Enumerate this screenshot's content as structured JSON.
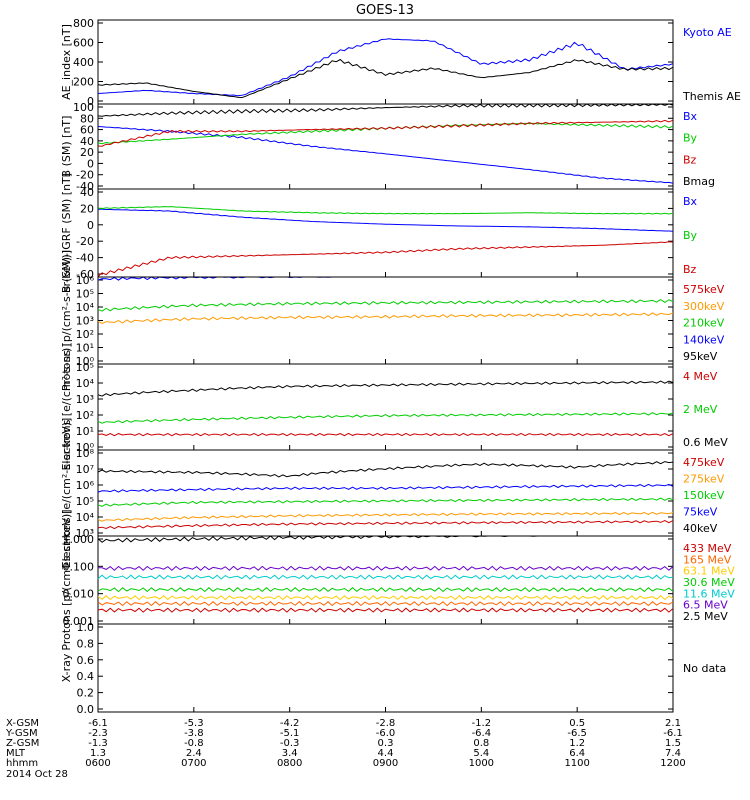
{
  "title": "GOES-13",
  "footer": {
    "rows": [
      {
        "label": "X-GSM",
        "values": [
          "-6.1",
          "-5.3",
          "-4.2",
          "-2.8",
          "-1.2",
          "0.5",
          "2.1"
        ]
      },
      {
        "label": "Y-GSM",
        "values": [
          "-2.3",
          "-3.8",
          "-5.1",
          "-6.0",
          "-6.4",
          "-6.5",
          "-6.1"
        ]
      },
      {
        "label": "Z-GSM",
        "values": [
          "-1.3",
          "-0.8",
          "-0.3",
          "0.3",
          "0.8",
          "1.2",
          "1.5"
        ]
      },
      {
        "label": "MLT",
        "values": [
          "1.3",
          "2.4",
          "3.4",
          "4.4",
          "5.4",
          "6.4",
          "7.4"
        ]
      },
      {
        "label": "hhmm",
        "values": [
          "0600",
          "0700",
          "0800",
          "0900",
          "1000",
          "1100",
          "1200"
        ]
      }
    ],
    "date": "2014 Oct 28"
  },
  "chart_data": [
    {
      "type": "line",
      "ylabel": "AE_index [nT]",
      "ylim": [
        0,
        800
      ],
      "yticks": [
        "800",
        "600",
        "400",
        "200",
        "0"
      ],
      "series": [
        {
          "name": "Kyoto AE",
          "color": "#0000ff",
          "x": [
            "0600",
            "0630",
            "0700",
            "0730",
            "0800",
            "0830",
            "0900",
            "0930",
            "1000",
            "1030",
            "1100",
            "1130",
            "1200"
          ],
          "values": [
            100,
            130,
            100,
            80,
            260,
            500,
            620,
            600,
            380,
            420,
            580,
            330,
            380
          ]
        },
        {
          "name": "Themis AE",
          "color": "#000000",
          "x": [
            "0600",
            "0630",
            "0700",
            "0730",
            "0800",
            "0830",
            "0900",
            "0930",
            "1000",
            "1030",
            "1100",
            "1130",
            "1200"
          ],
          "values": [
            180,
            200,
            120,
            60,
            240,
            420,
            280,
            340,
            250,
            300,
            420,
            330,
            340
          ]
        }
      ]
    },
    {
      "type": "line",
      "ylabel": "B (SM) [nT]",
      "ylim": [
        -40,
        100
      ],
      "yticks": [
        "100",
        "80",
        "60",
        "40",
        "20",
        "0",
        "-20",
        "-40"
      ],
      "series": [
        {
          "name": "Bx",
          "color": "#0000ff",
          "values": [
            63,
            55,
            45,
            30,
            18,
            5,
            -8,
            -22,
            -30
          ]
        },
        {
          "name": "By",
          "color": "#00cc00",
          "values": [
            35,
            42,
            50,
            55,
            60,
            65,
            68,
            65,
            62
          ]
        },
        {
          "name": "Bz",
          "color": "#cc0000",
          "values": [
            30,
            55,
            55,
            58,
            60,
            64,
            68,
            70,
            72
          ]
        },
        {
          "name": "Bmag",
          "color": "#000000",
          "values": [
            80,
            85,
            88,
            90,
            94,
            97,
            98,
            99,
            99
          ]
        }
      ]
    },
    {
      "type": "line",
      "ylabel": "B (SM)-IGRF (SM) [nT]",
      "ylim": [
        -60,
        40
      ],
      "yticks": [
        "40",
        "20",
        "0",
        "-20",
        "-40",
        "-60"
      ],
      "series": [
        {
          "name": "Bx",
          "color": "#0000ff",
          "values": [
            17,
            15,
            8,
            3,
            0,
            -2,
            -3,
            -5,
            -8
          ]
        },
        {
          "name": "By",
          "color": "#00cc00",
          "values": [
            18,
            20,
            15,
            13,
            12,
            12,
            13,
            12,
            12
          ]
        },
        {
          "name": "Bz",
          "color": "#cc0000",
          "values": [
            -58,
            -38,
            -36,
            -34,
            -32,
            -28,
            -26,
            -24,
            -20
          ]
        }
      ]
    },
    {
      "type": "line",
      "scale": "log",
      "ylabel": "Protons [p/(cm²-s-sr-keV)]",
      "ylim": [
        1,
        10000
      ],
      "yticks": [
        "10⁶",
        "10⁵",
        "10⁴",
        "10³",
        "10²",
        "10¹",
        "10⁰"
      ],
      "series": [
        {
          "name": "575keV",
          "color": "#cc0000",
          "values": [
            40000,
            40000,
            42000,
            45000,
            48000,
            50000,
            52000
          ]
        },
        {
          "name": "300keV",
          "color": "#ff9900",
          "values": [
            80,
            120,
            140,
            150,
            170,
            180,
            200
          ]
        },
        {
          "name": "210keV",
          "color": "#00cc00",
          "values": [
            300,
            500,
            600,
            650,
            700,
            750,
            800
          ]
        },
        {
          "name": "140keV",
          "color": "#0000ff",
          "values": [
            8000,
            10000,
            11000,
            12000,
            13000,
            14000,
            15000
          ]
        },
        {
          "name": "95keV",
          "color": "#000000",
          "values": [
            40000,
            40000,
            42000,
            45000,
            48000,
            50000,
            52000
          ]
        }
      ]
    },
    {
      "type": "line",
      "scale": "log",
      "ylabel": "Electrons [e/(cm²-s-sr)]",
      "ylim": [
        1,
        100000
      ],
      "yticks": [
        "10⁵",
        "10⁴",
        "10³",
        "10²",
        "10¹",
        "10⁰"
      ],
      "series": [
        {
          "name": "4 MeV",
          "color": "#cc0000",
          "values": [
            8,
            8,
            8,
            8,
            8,
            8,
            8
          ]
        },
        {
          "name": "2 MeV",
          "color": "#00cc00",
          "values": [
            40,
            60,
            80,
            100,
            110,
            120,
            130
          ]
        },
        {
          "name": "0.6 MeV",
          "color": "#000000",
          "values": [
            1500,
            3000,
            5000,
            6000,
            7000,
            8000,
            9000
          ]
        }
      ]
    },
    {
      "type": "line",
      "scale": "log",
      "ylabel": "Electrons [e/(cm²-s-sr-keV)]",
      "ylim": [
        1000,
        100000000
      ],
      "yticks": [
        "10⁸",
        "10⁷",
        "10⁶",
        "10⁵",
        "10⁴",
        "10³"
      ],
      "series": [
        {
          "name": "475keV",
          "color": "#cc0000",
          "values": [
            3000,
            4000,
            5000,
            5500,
            6000,
            6500,
            7000
          ]
        },
        {
          "name": "275keV",
          "color": "#ff9900",
          "values": [
            8000,
            12000,
            15000,
            17000,
            19000,
            20000,
            21000
          ]
        },
        {
          "name": "150keV",
          "color": "#00cc00",
          "values": [
            60000,
            90000,
            100000,
            110000,
            120000,
            130000,
            140000
          ]
        },
        {
          "name": "75keV",
          "color": "#0000ff",
          "values": [
            400000,
            500000,
            600000,
            600000,
            700000,
            800000,
            900000
          ]
        },
        {
          "name": "40keV",
          "color": "#000000",
          "values": [
            6000000,
            5000000,
            3000000,
            8000000,
            15000000,
            10000000,
            20000000
          ]
        }
      ]
    },
    {
      "type": "line",
      "scale": "log",
      "ylabel": "Protons [p/(cm²-s-sr-keV)]",
      "ylim": [
        0.001,
        1
      ],
      "yticks": [
        "1.000",
        "0.100",
        "0.010",
        "0.001"
      ],
      "series": [
        {
          "name": "433 MeV",
          "color": "#cc0000",
          "values": [
            0.003,
            0.003,
            0.003,
            0.003,
            0.003,
            0.003,
            0.003
          ]
        },
        {
          "name": "165 MeV",
          "color": "#ff6600",
          "values": [
            0.005,
            0.005,
            0.005,
            0.005,
            0.005,
            0.005,
            0.005
          ]
        },
        {
          "name": "63.1 MeV",
          "color": "#ffcc00",
          "values": [
            0.008,
            0.008,
            0.008,
            0.008,
            0.008,
            0.008,
            0.008
          ]
        },
        {
          "name": "30.6 MeV",
          "color": "#00cc00",
          "values": [
            0.015,
            0.015,
            0.015,
            0.015,
            0.015,
            0.015,
            0.015
          ]
        },
        {
          "name": "11.6 MeV",
          "color": "#00cccc",
          "values": [
            0.04,
            0.04,
            0.04,
            0.04,
            0.04,
            0.04,
            0.04
          ]
        },
        {
          "name": "6.5 MeV",
          "color": "#6600cc",
          "values": [
            0.08,
            0.08,
            0.08,
            0.08,
            0.08,
            0.08,
            0.08
          ]
        },
        {
          "name": "2.5 MeV",
          "color": "#000000",
          "values": [
            0.7,
            0.8,
            0.9,
            1.0,
            1.1,
            1.2,
            1.2
          ]
        }
      ]
    },
    {
      "type": "line",
      "ylabel": "X-ray",
      "ylim": [
        0,
        1
      ],
      "yticks": [
        "1.0",
        "0.8",
        "0.6",
        "0.4",
        "0.2",
        "0.0"
      ],
      "series": [],
      "annotation": "No data"
    }
  ]
}
